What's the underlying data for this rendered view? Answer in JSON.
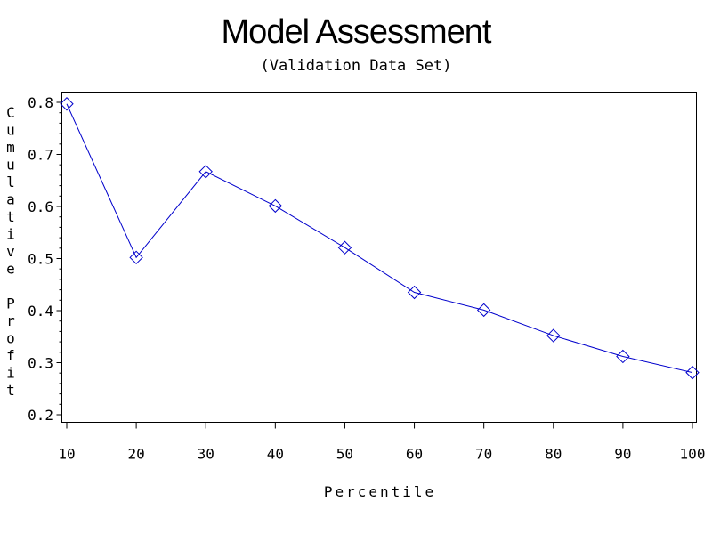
{
  "chart_data": {
    "type": "line",
    "title": "Model Assessment",
    "subtitle": "(Validation Data Set)",
    "xlabel": "Percentile",
    "ylabel": "Cumulative Profit",
    "x": [
      10,
      20,
      30,
      40,
      50,
      60,
      70,
      80,
      90,
      100
    ],
    "x_ticks": [
      10,
      20,
      30,
      40,
      50,
      60,
      70,
      80,
      90,
      100
    ],
    "y_ticks": [
      0.2,
      0.3,
      0.4,
      0.5,
      0.6,
      0.7,
      0.8
    ],
    "y_tick_labels": [
      "0.2",
      "0.3",
      "0.4",
      "0.5",
      "0.6",
      "0.7",
      "0.8"
    ],
    "xlim": [
      10,
      100
    ],
    "ylim": [
      0.18,
      0.82
    ],
    "grid": false,
    "legend": "none",
    "series": [
      {
        "values": [
          0.797,
          0.502,
          0.667,
          0.601,
          0.521,
          0.435,
          0.401,
          0.352,
          0.312,
          0.281
        ],
        "color": "#0000cc",
        "marker": "diamond"
      }
    ]
  }
}
